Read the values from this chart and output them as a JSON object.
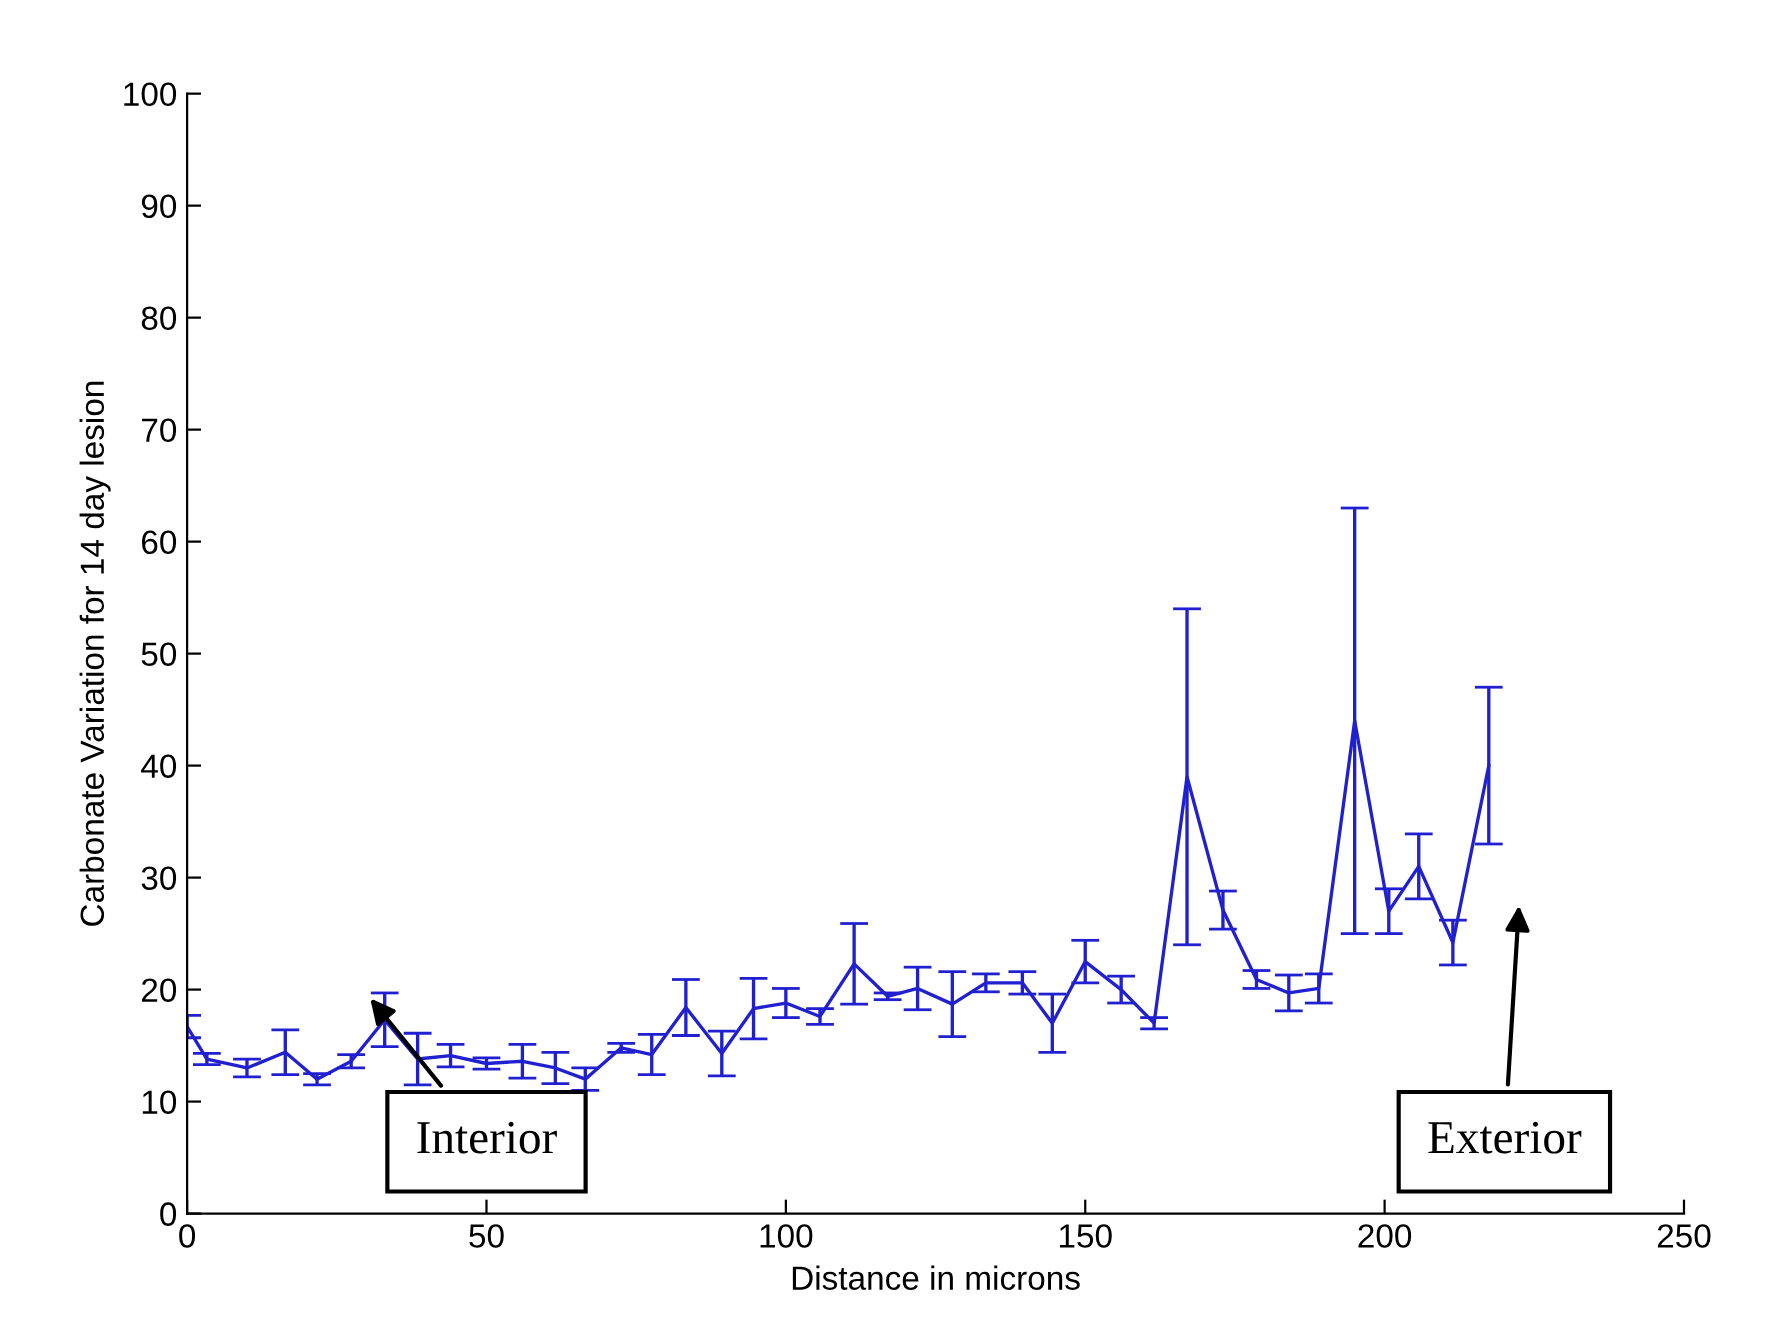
{
  "chart_data": {
    "type": "line",
    "xlabel": "Distance in microns",
    "ylabel": "Carbonate Variation for 14 day lesion",
    "x": [
      0,
      3.3,
      10,
      16.4,
      21.7,
      27.4,
      33,
      38.5,
      44,
      50,
      56,
      61.5,
      66.5,
      72.5,
      77.6,
      83.3,
      89.3,
      94.6,
      100,
      105.7,
      111.4,
      117,
      122,
      127.8,
      133.4,
      139.5,
      144.5,
      150,
      156,
      161.5,
      167,
      173,
      178.6,
      184,
      189,
      195,
      200.7,
      205.7,
      211.4,
      217.4
    ],
    "series": [
      {
        "color": "#2020d0",
        "values": [
          16.7,
          13.8,
          13.0,
          14.4,
          12.0,
          13.6,
          17.3,
          13.8,
          14.1,
          13.4,
          13.6,
          13.0,
          12.0,
          14.8,
          14.2,
          18.4,
          14.3,
          18.3,
          18.8,
          17.6,
          22.3,
          19.4,
          20.1,
          18.7,
          20.6,
          20.6,
          17.0,
          22.5,
          20.0,
          17.0,
          39,
          27.1,
          20.9,
          19.7,
          20.1,
          44,
          27,
          31,
          24.2,
          40
        ],
        "errors": [
          1,
          0.5,
          0.8,
          2,
          0.5,
          0.6,
          2.4,
          2.3,
          1,
          0.5,
          1.5,
          1.4,
          1,
          0.4,
          1.8,
          2.5,
          2,
          2.7,
          1.3,
          0.7,
          3.6,
          0.3,
          1.9,
          2.9,
          0.8,
          1,
          2.6,
          1.9,
          1.2,
          0.5,
          15,
          1.7,
          0.8,
          1.6,
          1.3,
          19,
          2,
          2.9,
          2,
          7
        ]
      }
    ],
    "xlim": [
      0,
      250
    ],
    "ylim": [
      0,
      100
    ],
    "xticks": [
      0,
      50,
      100,
      150,
      200,
      250
    ],
    "yticks": [
      0,
      10,
      20,
      30,
      40,
      50,
      60,
      70,
      80,
      90,
      100
    ],
    "grid": false,
    "legend": false,
    "marker": "none",
    "line_style": "solid",
    "annotations": [
      "Interior",
      "Exterior"
    ]
  }
}
